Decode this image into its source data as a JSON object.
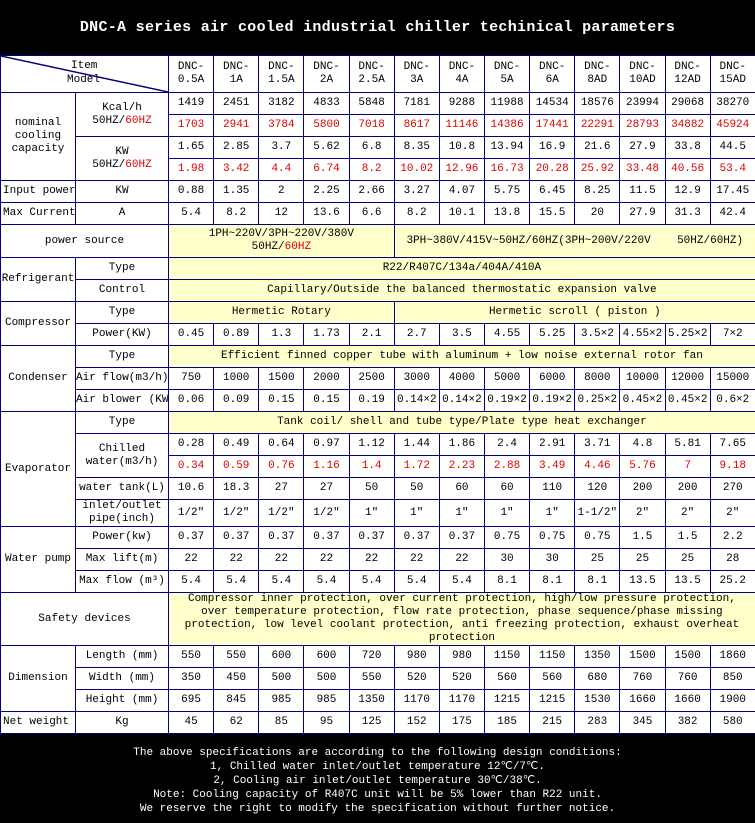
{
  "title": "DNC-A series air cooled industrial chiller techinical parameters",
  "header": {
    "item": "Item",
    "model": "Model",
    "models": [
      [
        "DNC-",
        "0.5A"
      ],
      [
        "DNC-",
        "1A"
      ],
      [
        "DNC-",
        "1.5A"
      ],
      [
        "DNC-",
        "2A"
      ],
      [
        "DNC-",
        "2.5A"
      ],
      [
        "DNC-",
        "3A"
      ],
      [
        "DNC-",
        "4A"
      ],
      [
        "DNC-",
        "5A"
      ],
      [
        "DNC-",
        "6A"
      ],
      [
        "DNC-",
        "8AD"
      ],
      [
        "DNC-",
        "10AD"
      ],
      [
        "DNC-",
        "12AD"
      ],
      [
        "DNC-",
        "15AD"
      ]
    ]
  },
  "cooling": {
    "label": "nominal cooling capacity",
    "kcal": {
      "unit": "Kcal/h",
      "freq": "50HZ/",
      "freq_red": "60HZ",
      "v50": [
        "1419",
        "2451",
        "3182",
        "4833",
        "5848",
        "7181",
        "9288",
        "11988",
        "14534",
        "18576",
        "23994",
        "29068",
        "38270"
      ],
      "v60": [
        "1703",
        "2941",
        "3784",
        "5800",
        "7018",
        "8617",
        "11146",
        "14386",
        "17441",
        "22291",
        "28793",
        "34882",
        "45924"
      ]
    },
    "kw": {
      "unit": "KW",
      "freq": "50HZ/",
      "freq_red": "60HZ",
      "v50": [
        "1.65",
        "2.85",
        "3.7",
        "5.62",
        "6.8",
        "8.35",
        "10.8",
        "13.94",
        "16.9",
        "21.6",
        "27.9",
        "33.8",
        "44.5"
      ],
      "v60": [
        "1.98",
        "3.42",
        "4.4",
        "6.74",
        "8.2",
        "10.02",
        "12.96",
        "16.73",
        "20.28",
        "25.92",
        "33.48",
        "40.56",
        "53.4"
      ]
    }
  },
  "input_power": {
    "label": "Input power",
    "unit": "KW",
    "values": [
      "0.88",
      "1.35",
      "2",
      "2.25",
      "2.66",
      "3.27",
      "4.07",
      "5.75",
      "6.45",
      "8.25",
      "11.5",
      "12.9",
      "17.45"
    ]
  },
  "max_current": {
    "label": "Max Current",
    "unit": "A",
    "values": [
      "5.4",
      "8.2",
      "12",
      "13.6",
      "6.6",
      "8.2",
      "10.1",
      "13.8",
      "15.5",
      "20",
      "27.9",
      "31.3",
      "42.4"
    ]
  },
  "power_source": {
    "label": "power source",
    "single": "1PH~220V/3PH~220V/380V",
    "single_freq": "50HZ/",
    "single_freq_red": "60HZ",
    "three": "3PH~380V/415V~50HZ/60HZ(3PH~200V/220V    50HZ/60HZ)"
  },
  "refrigerant": {
    "label": "Refrigerant",
    "type_label": "Type",
    "type": "R22/R407C/134a/404A/410A",
    "control_label": "Control",
    "control": "Capillary/Outside the balanced thermostatic expansion valve"
  },
  "compressor": {
    "label": "Compressor",
    "type_label": "Type",
    "type_rotary": "Hermetic Rotary",
    "type_scroll": "Hermetic scroll ( piston )",
    "power_label": "Power(KW)",
    "power": [
      "0.45",
      "0.89",
      "1.3",
      "1.73",
      "2.1",
      "2.7",
      "3.5",
      "4.55",
      "5.25",
      "3.5×2",
      "4.55×2",
      "5.25×2",
      "7×2"
    ]
  },
  "condenser": {
    "label": "Condenser",
    "type_label": "Type",
    "type": "Efficient finned copper tube with aluminum + low noise external rotor fan",
    "airflow_label": "Air flow(m3/h)",
    "airflow": [
      "750",
      "1000",
      "1500",
      "2000",
      "2500",
      "3000",
      "4000",
      "5000",
      "6000",
      "8000",
      "10000",
      "12000",
      "15000"
    ],
    "blower_label": "Air blower (KW)",
    "blower": [
      "0.06",
      "0.09",
      "0.15",
      "0.15",
      "0.19",
      "0.14×2",
      "0.14×2",
      "0.19×2",
      "0.19×2",
      "0.25×2",
      "0.45×2",
      "0.45×2",
      "0.6×2"
    ]
  },
  "evaporator": {
    "label": "Evaporator",
    "type_label": "Type",
    "type": "Tank coil/ shell and tube type/Plate type heat exchanger",
    "chilled_label": "Chilled water(m3/h)",
    "chilled50": [
      "0.28",
      "0.49",
      "0.64",
      "0.97",
      "1.12",
      "1.44",
      "1.86",
      "2.4",
      "2.91",
      "3.71",
      "4.8",
      "5.81",
      "7.65"
    ],
    "chilled60": [
      "0.34",
      "0.59",
      "0.76",
      "1.16",
      "1.4",
      "1.72",
      "2.23",
      "2.88",
      "3.49",
      "4.46",
      "5.76",
      "7",
      "9.18"
    ],
    "tank_label": "water tank(L)",
    "tank": [
      "10.6",
      "18.3",
      "27",
      "27",
      "50",
      "50",
      "60",
      "60",
      "110",
      "120",
      "200",
      "200",
      "270"
    ],
    "pipe_label": "inlet/outlet pipe(inch)",
    "pipe": [
      "1/2\"",
      "1/2\"",
      "1/2\"",
      "1/2\"",
      "1\"",
      "1\"",
      "1\"",
      "1\"",
      "1\"",
      "1-1/2\"",
      "2\"",
      "2\"",
      "2\""
    ]
  },
  "water_pump": {
    "label": "Water pump",
    "power_label": "Power(kw)",
    "power": [
      "0.37",
      "0.37",
      "0.37",
      "0.37",
      "0.37",
      "0.37",
      "0.37",
      "0.75",
      "0.75",
      "0.75",
      "1.5",
      "1.5",
      "2.2"
    ],
    "lift_label": "Max lift(m)",
    "lift": [
      "22",
      "22",
      "22",
      "22",
      "22",
      "22",
      "22",
      "30",
      "30",
      "25",
      "25",
      "25",
      "28"
    ],
    "flow_label": "Max flow (m³)",
    "flow": [
      "5.4",
      "5.4",
      "5.4",
      "5.4",
      "5.4",
      "5.4",
      "5.4",
      "8.1",
      "8.1",
      "8.1",
      "13.5",
      "13.5",
      "25.2"
    ]
  },
  "safety": {
    "label": "Safety devices",
    "text": "Compressor inner protection, over current protection, high/low pressure protection, over temperature protection, flow rate protection, phase sequence/phase missing protection, low level coolant protection, anti freezing protection, exhaust overheat protection"
  },
  "dimension": {
    "label": "Dimension",
    "length_label": "Length (mm)",
    "length": [
      "550",
      "550",
      "600",
      "600",
      "720",
      "980",
      "980",
      "1150",
      "1150",
      "1350",
      "1500",
      "1500",
      "1860"
    ],
    "width_label": "Width (mm)",
    "width": [
      "350",
      "450",
      "500",
      "500",
      "550",
      "520",
      "520",
      "560",
      "560",
      "680",
      "760",
      "760",
      "850"
    ],
    "height_label": "Height (mm)",
    "height": [
      "695",
      "845",
      "985",
      "985",
      "1350",
      "1170",
      "1170",
      "1215",
      "1215",
      "1530",
      "1660",
      "1660",
      "1900"
    ]
  },
  "net_weight": {
    "label": "Net weight",
    "unit": "Kg",
    "values": [
      "45",
      "62",
      "85",
      "95",
      "125",
      "152",
      "175",
      "185",
      "215",
      "283",
      "345",
      "382",
      "580"
    ]
  },
  "footer": {
    "lines": [
      "The above specifications are according to the following design conditions:",
      "1, Chilled water inlet/outlet temperature 12℃/7℃.",
      "2, Cooling air inlet/outlet temperature 30℃/38℃.",
      "Note: Cooling capacity of R407C unit will be 5% lower than R22 unit.",
      "We reserve the right to modify the specification without further notice."
    ]
  },
  "colors": {
    "border": "#000080",
    "highlight": "#ffffcc",
    "accent_red": "#e00000",
    "background": "#000000"
  }
}
